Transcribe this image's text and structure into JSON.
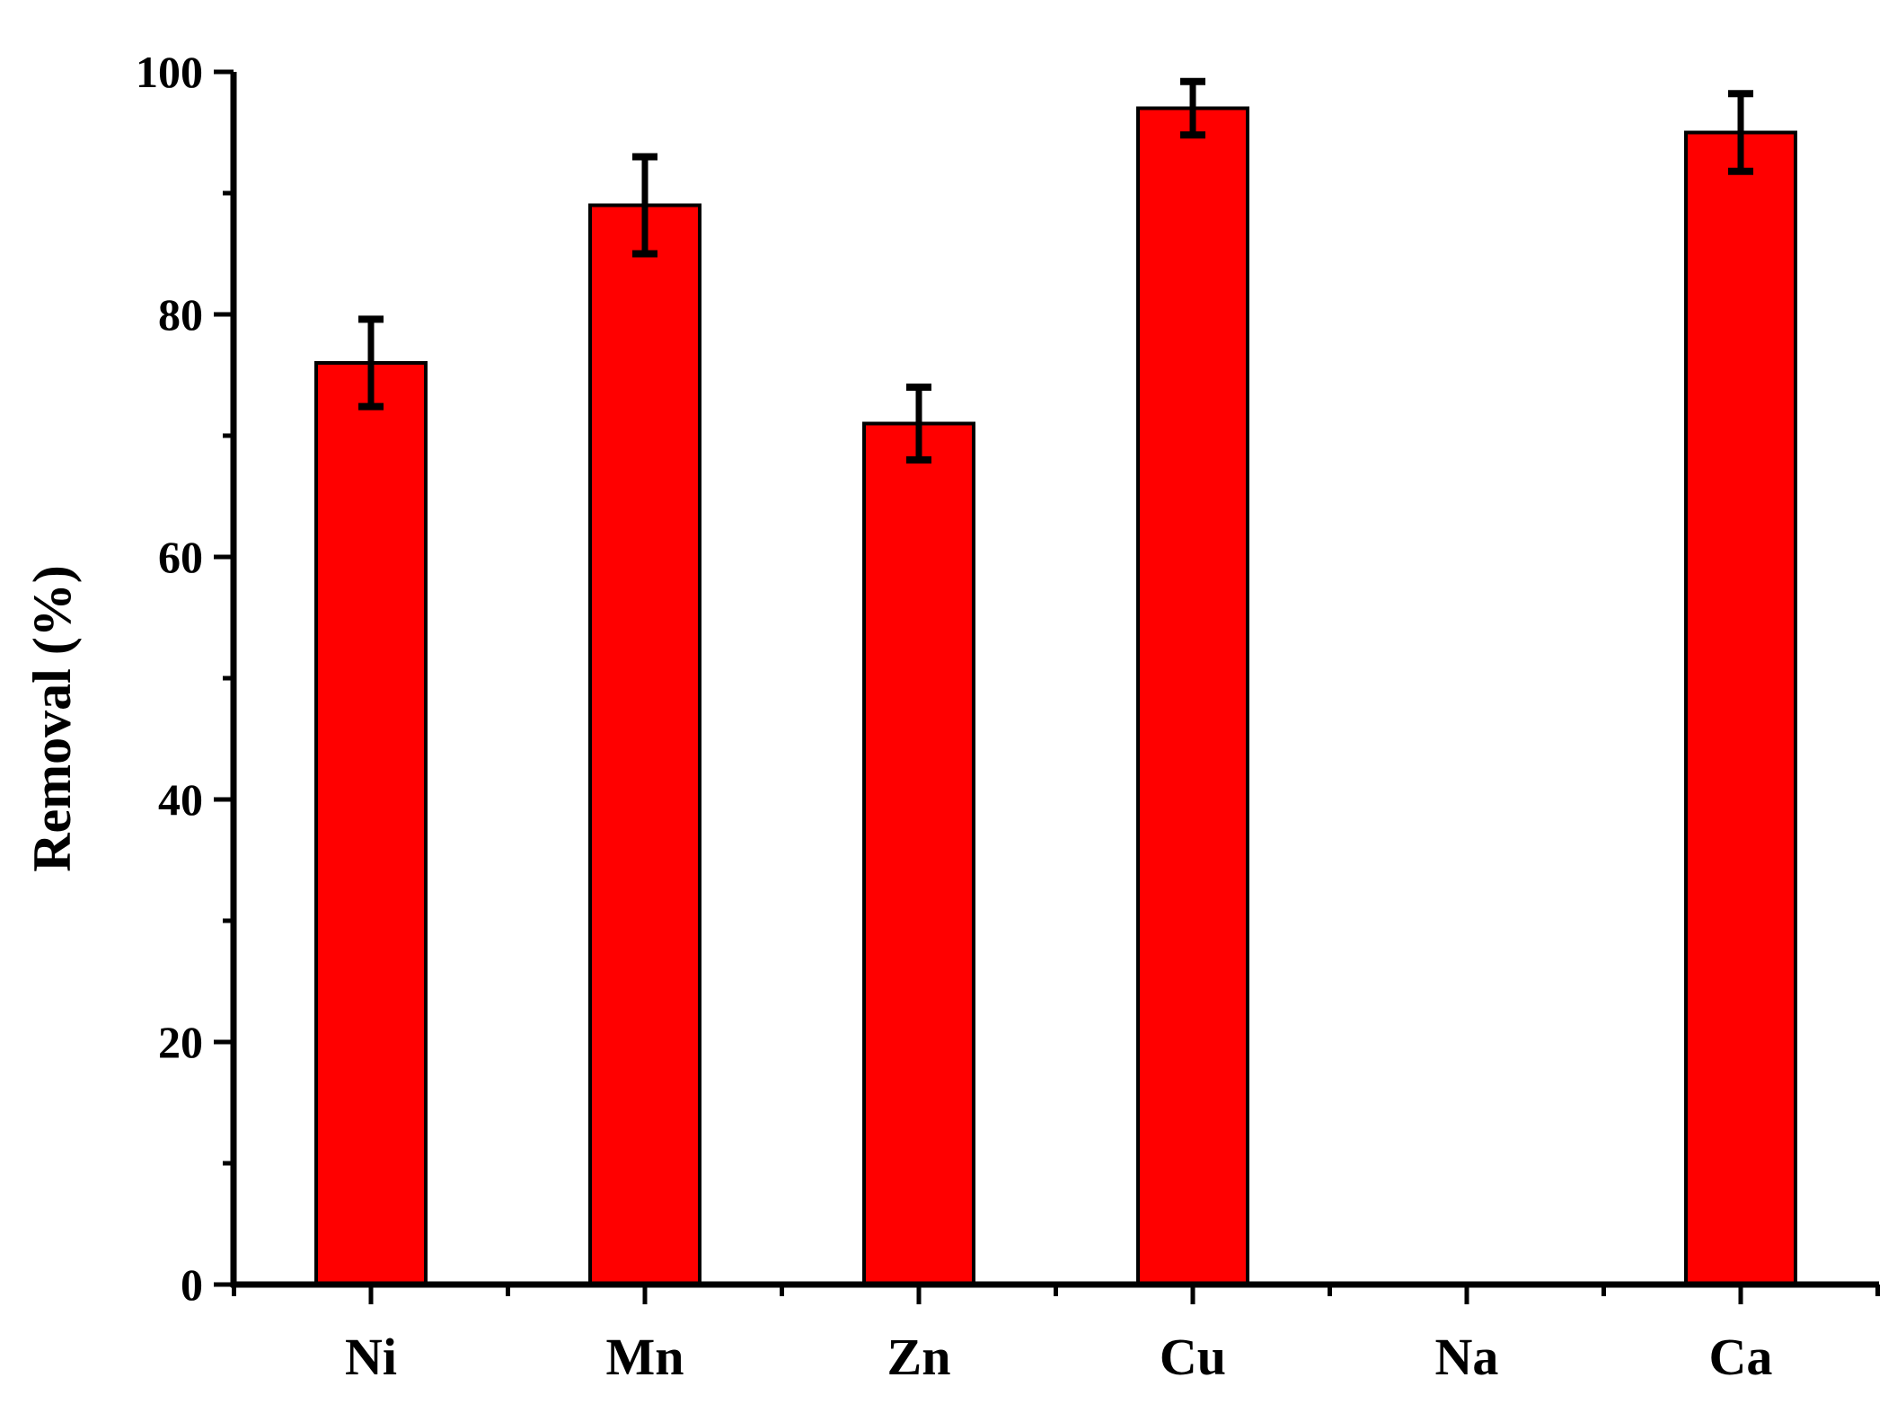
{
  "chart_data": {
    "type": "bar",
    "title": "",
    "xlabel": "",
    "ylabel": "Removal (%)",
    "ylim": [
      0,
      100
    ],
    "yticks": [
      0,
      20,
      40,
      60,
      80,
      100
    ],
    "categories": [
      "Ni",
      "Mn",
      "Zn",
      "Cu",
      "Na",
      "Ca"
    ],
    "values": [
      76,
      89,
      71,
      97,
      0,
      95
    ],
    "errors": [
      3.6,
      4.0,
      3.0,
      2.2,
      0,
      3.2
    ],
    "bar_color": "#ff0000",
    "edge_color": "#000000",
    "grid": false,
    "legend": "none"
  }
}
